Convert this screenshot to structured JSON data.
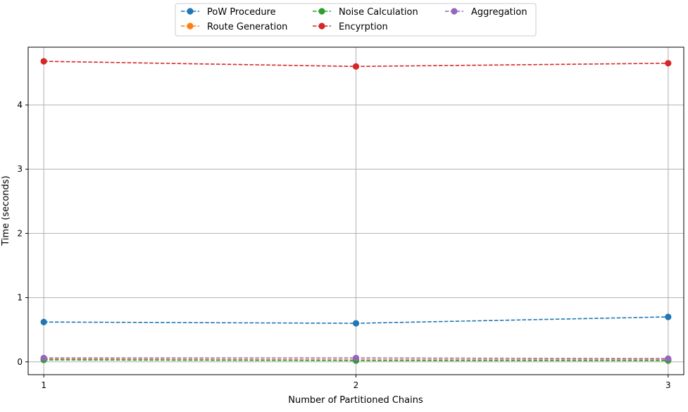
{
  "chart_data": {
    "type": "line",
    "title": "",
    "xlabel": "Number of Partitioned Chains",
    "ylabel": "Time (seconds)",
    "x": [
      1,
      2,
      3
    ],
    "xlim": [
      0.95,
      3.05
    ],
    "ylim": [
      -0.2,
      4.9
    ],
    "xticks": [
      1,
      2,
      3
    ],
    "yticks": [
      0,
      1,
      2,
      3,
      4
    ],
    "grid": true,
    "legend_position": "top-center",
    "line_style": "dashed",
    "marker": "circle",
    "series": [
      {
        "name": "PoW Procedure",
        "color": "#1f77b4",
        "values": [
          0.62,
          0.6,
          0.7
        ]
      },
      {
        "name": "Route Generation",
        "color": "#ff7f0e",
        "values": [
          0.04,
          0.03,
          0.03
        ]
      },
      {
        "name": "Noise Calculation",
        "color": "#2ca02c",
        "values": [
          0.03,
          0.02,
          0.02
        ]
      },
      {
        "name": "Encyrption",
        "color": "#d62728",
        "values": [
          4.68,
          4.6,
          4.65
        ]
      },
      {
        "name": "Aggregation",
        "color": "#9467bd",
        "values": [
          0.06,
          0.06,
          0.05
        ]
      }
    ]
  }
}
